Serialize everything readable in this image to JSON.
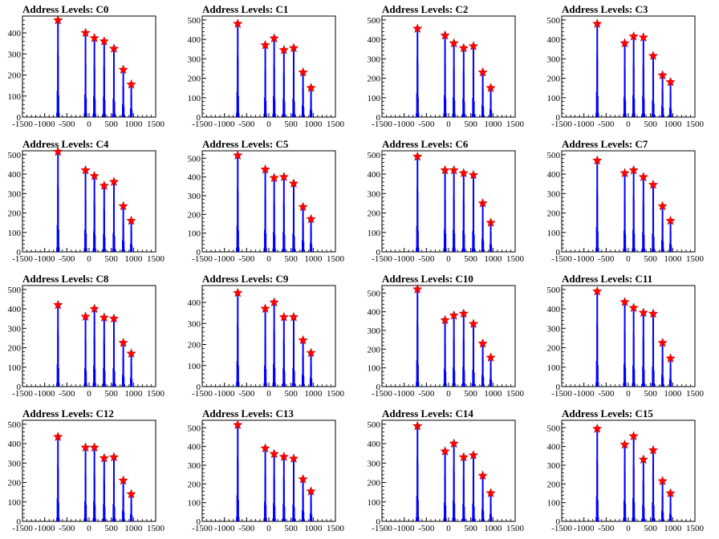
{
  "colors": {
    "histogram": "#0000ff",
    "peak_marker": "#ff0000",
    "axis": "#000000",
    "background": "#ffffff"
  },
  "chart_data": [
    {
      "type": "bar",
      "title": "Address Levels: C0",
      "xlim": [
        -1500,
        1500
      ],
      "ylim": [
        0,
        480
      ],
      "xticks": [
        -1500,
        -1000,
        -500,
        0,
        500,
        1000,
        1500
      ],
      "yticks": [
        0,
        100,
        200,
        300,
        400
      ],
      "peaks": [
        {
          "x": -700,
          "y": 460
        },
        {
          "x": -80,
          "y": 400
        },
        {
          "x": 120,
          "y": 375
        },
        {
          "x": 340,
          "y": 360
        },
        {
          "x": 560,
          "y": 325
        },
        {
          "x": 770,
          "y": 225
        },
        {
          "x": 950,
          "y": 155
        }
      ]
    },
    {
      "type": "bar",
      "title": "Address Levels: C1",
      "xlim": [
        -1500,
        1500
      ],
      "ylim": [
        0,
        520
      ],
      "xticks": [
        -1500,
        -1000,
        -500,
        0,
        500,
        1000,
        1500
      ],
      "yticks": [
        0,
        100,
        200,
        300,
        400,
        500
      ],
      "peaks": [
        {
          "x": -700,
          "y": 480
        },
        {
          "x": -80,
          "y": 370
        },
        {
          "x": 120,
          "y": 405
        },
        {
          "x": 340,
          "y": 345
        },
        {
          "x": 560,
          "y": 355
        },
        {
          "x": 770,
          "y": 230
        },
        {
          "x": 950,
          "y": 150
        }
      ]
    },
    {
      "type": "bar",
      "title": "Address Levels: C2",
      "xlim": [
        -1500,
        1500
      ],
      "ylim": [
        0,
        520
      ],
      "xticks": [
        -1500,
        -1000,
        -500,
        0,
        500,
        1000,
        1500
      ],
      "yticks": [
        0,
        100,
        200,
        300,
        400,
        500
      ],
      "peaks": [
        {
          "x": -700,
          "y": 455
        },
        {
          "x": -80,
          "y": 420
        },
        {
          "x": 120,
          "y": 380
        },
        {
          "x": 340,
          "y": 355
        },
        {
          "x": 560,
          "y": 365
        },
        {
          "x": 770,
          "y": 230
        },
        {
          "x": 950,
          "y": 150
        }
      ]
    },
    {
      "type": "bar",
      "title": "Address Levels: C3",
      "xlim": [
        -1500,
        1500
      ],
      "ylim": [
        0,
        520
      ],
      "xticks": [
        -1500,
        -1000,
        -500,
        0,
        500,
        1000,
        1500
      ],
      "yticks": [
        0,
        100,
        200,
        300,
        400,
        500
      ],
      "peaks": [
        {
          "x": -700,
          "y": 480
        },
        {
          "x": -80,
          "y": 380
        },
        {
          "x": 120,
          "y": 415
        },
        {
          "x": 340,
          "y": 410
        },
        {
          "x": 560,
          "y": 315
        },
        {
          "x": 770,
          "y": 215
        },
        {
          "x": 950,
          "y": 180
        }
      ]
    },
    {
      "type": "bar",
      "title": "Address Levels: C4",
      "xlim": [
        -1500,
        1500
      ],
      "ylim": [
        0,
        520
      ],
      "xticks": [
        -1500,
        -1000,
        -500,
        0,
        500,
        1000,
        1500
      ],
      "yticks": [
        0,
        100,
        200,
        300,
        400,
        500
      ],
      "peaks": [
        {
          "x": -700,
          "y": 515
        },
        {
          "x": -80,
          "y": 420
        },
        {
          "x": 120,
          "y": 390
        },
        {
          "x": 340,
          "y": 340
        },
        {
          "x": 560,
          "y": 360
        },
        {
          "x": 770,
          "y": 235
        },
        {
          "x": 950,
          "y": 160
        }
      ]
    },
    {
      "type": "bar",
      "title": "Address Levels: C5",
      "xlim": [
        -1500,
        1500
      ],
      "ylim": [
        0,
        540
      ],
      "xticks": [
        -1500,
        -1000,
        -500,
        0,
        500,
        1000,
        1500
      ],
      "yticks": [
        0,
        100,
        200,
        300,
        400,
        500
      ],
      "peaks": [
        {
          "x": -700,
          "y": 515
        },
        {
          "x": -80,
          "y": 440
        },
        {
          "x": 120,
          "y": 395
        },
        {
          "x": 340,
          "y": 400
        },
        {
          "x": 560,
          "y": 365
        },
        {
          "x": 770,
          "y": 240
        },
        {
          "x": 950,
          "y": 175
        }
      ]
    },
    {
      "type": "bar",
      "title": "Address Levels: C6",
      "xlim": [
        -1500,
        1500
      ],
      "ylim": [
        0,
        520
      ],
      "xticks": [
        -1500,
        -1000,
        -500,
        0,
        500,
        1000,
        1500
      ],
      "yticks": [
        0,
        100,
        200,
        300,
        400,
        500
      ],
      "peaks": [
        {
          "x": -700,
          "y": 490
        },
        {
          "x": -80,
          "y": 420
        },
        {
          "x": 120,
          "y": 420
        },
        {
          "x": 340,
          "y": 405
        },
        {
          "x": 560,
          "y": 395
        },
        {
          "x": 770,
          "y": 250
        },
        {
          "x": 950,
          "y": 150
        }
      ]
    },
    {
      "type": "bar",
      "title": "Address Levels: C7",
      "xlim": [
        -1500,
        1500
      ],
      "ylim": [
        0,
        520
      ],
      "xticks": [
        -1500,
        -1000,
        -500,
        0,
        500,
        1000,
        1500
      ],
      "yticks": [
        0,
        100,
        200,
        300,
        400,
        500
      ],
      "peaks": [
        {
          "x": -700,
          "y": 470
        },
        {
          "x": -80,
          "y": 405
        },
        {
          "x": 120,
          "y": 420
        },
        {
          "x": 340,
          "y": 385
        },
        {
          "x": 560,
          "y": 345
        },
        {
          "x": 770,
          "y": 235
        },
        {
          "x": 950,
          "y": 160
        }
      ]
    },
    {
      "type": "bar",
      "title": "Address Levels: C8",
      "xlim": [
        -1500,
        1500
      ],
      "ylim": [
        0,
        520
      ],
      "xticks": [
        -1500,
        -1000,
        -500,
        0,
        500,
        1000,
        1500
      ],
      "yticks": [
        0,
        100,
        200,
        300,
        400,
        500
      ],
      "peaks": [
        {
          "x": -700,
          "y": 420
        },
        {
          "x": -80,
          "y": 360
        },
        {
          "x": 120,
          "y": 400
        },
        {
          "x": 340,
          "y": 355
        },
        {
          "x": 560,
          "y": 350
        },
        {
          "x": 770,
          "y": 225
        },
        {
          "x": 950,
          "y": 170
        }
      ]
    },
    {
      "type": "bar",
      "title": "Address Levels: C9",
      "xlim": [
        -1500,
        1500
      ],
      "ylim": [
        0,
        480
      ],
      "xticks": [
        -1500,
        -1000,
        -500,
        0,
        500,
        1000,
        1500
      ],
      "yticks": [
        0,
        100,
        200,
        300,
        400
      ],
      "peaks": [
        {
          "x": -700,
          "y": 445
        },
        {
          "x": -80,
          "y": 370
        },
        {
          "x": 120,
          "y": 400
        },
        {
          "x": 340,
          "y": 330
        },
        {
          "x": 560,
          "y": 330
        },
        {
          "x": 770,
          "y": 220
        },
        {
          "x": 950,
          "y": 160
        }
      ]
    },
    {
      "type": "bar",
      "title": "Address Levels: C10",
      "xlim": [
        -1500,
        1500
      ],
      "ylim": [
        0,
        540
      ],
      "xticks": [
        -1500,
        -1000,
        -500,
        0,
        500,
        1000,
        1500
      ],
      "yticks": [
        0,
        100,
        200,
        300,
        400,
        500
      ],
      "peaks": [
        {
          "x": -700,
          "y": 520
        },
        {
          "x": -80,
          "y": 355
        },
        {
          "x": 120,
          "y": 380
        },
        {
          "x": 340,
          "y": 390
        },
        {
          "x": 560,
          "y": 335
        },
        {
          "x": 770,
          "y": 230
        },
        {
          "x": 950,
          "y": 155
        }
      ]
    },
    {
      "type": "bar",
      "title": "Address Levels: C11",
      "xlim": [
        -1500,
        1500
      ],
      "ylim": [
        0,
        520
      ],
      "xticks": [
        -1500,
        -1000,
        -500,
        0,
        500,
        1000,
        1500
      ],
      "yticks": [
        0,
        100,
        200,
        300,
        400,
        500
      ],
      "peaks": [
        {
          "x": -700,
          "y": 490
        },
        {
          "x": -80,
          "y": 435
        },
        {
          "x": 120,
          "y": 405
        },
        {
          "x": 340,
          "y": 380
        },
        {
          "x": 560,
          "y": 375
        },
        {
          "x": 770,
          "y": 225
        },
        {
          "x": 950,
          "y": 145
        }
      ]
    },
    {
      "type": "bar",
      "title": "Address Levels: C12",
      "xlim": [
        -1500,
        1500
      ],
      "ylim": [
        0,
        520
      ],
      "xticks": [
        -1500,
        -1000,
        -500,
        0,
        500,
        1000,
        1500
      ],
      "yticks": [
        0,
        100,
        200,
        300,
        400,
        500
      ],
      "peaks": [
        {
          "x": -700,
          "y": 435
        },
        {
          "x": -80,
          "y": 380
        },
        {
          "x": 120,
          "y": 380
        },
        {
          "x": 340,
          "y": 325
        },
        {
          "x": 560,
          "y": 330
        },
        {
          "x": 770,
          "y": 210
        },
        {
          "x": 950,
          "y": 140
        }
      ]
    },
    {
      "type": "bar",
      "title": "Address Levels: C13",
      "xlim": [
        -1500,
        1500
      ],
      "ylim": [
        0,
        540
      ],
      "xticks": [
        -1500,
        -1000,
        -500,
        0,
        500,
        1000,
        1500
      ],
      "yticks": [
        0,
        100,
        200,
        300,
        400,
        500
      ],
      "peaks": [
        {
          "x": -700,
          "y": 515
        },
        {
          "x": -80,
          "y": 390
        },
        {
          "x": 120,
          "y": 360
        },
        {
          "x": 340,
          "y": 345
        },
        {
          "x": 560,
          "y": 335
        },
        {
          "x": 770,
          "y": 225
        },
        {
          "x": 950,
          "y": 160
        }
      ]
    },
    {
      "type": "bar",
      "title": "Address Levels: C14",
      "xlim": [
        -1500,
        1500
      ],
      "ylim": [
        0,
        520
      ],
      "xticks": [
        -1500,
        -1000,
        -500,
        0,
        500,
        1000,
        1500
      ],
      "yticks": [
        0,
        100,
        200,
        300,
        400,
        500
      ],
      "peaks": [
        {
          "x": -700,
          "y": 490
        },
        {
          "x": -80,
          "y": 360
        },
        {
          "x": 120,
          "y": 400
        },
        {
          "x": 340,
          "y": 330
        },
        {
          "x": 560,
          "y": 340
        },
        {
          "x": 770,
          "y": 235
        },
        {
          "x": 950,
          "y": 145
        }
      ]
    },
    {
      "type": "bar",
      "title": "Address Levels: C15",
      "xlim": [
        -1500,
        1500
      ],
      "ylim": [
        0,
        540
      ],
      "xticks": [
        -1500,
        -1000,
        -500,
        0,
        500,
        1000,
        1500
      ],
      "yticks": [
        0,
        100,
        200,
        300,
        400,
        500
      ],
      "peaks": [
        {
          "x": -700,
          "y": 495
        },
        {
          "x": -80,
          "y": 410
        },
        {
          "x": 120,
          "y": 455
        },
        {
          "x": 340,
          "y": 330
        },
        {
          "x": 560,
          "y": 380
        },
        {
          "x": 770,
          "y": 215
        },
        {
          "x": 950,
          "y": 150
        }
      ]
    }
  ]
}
